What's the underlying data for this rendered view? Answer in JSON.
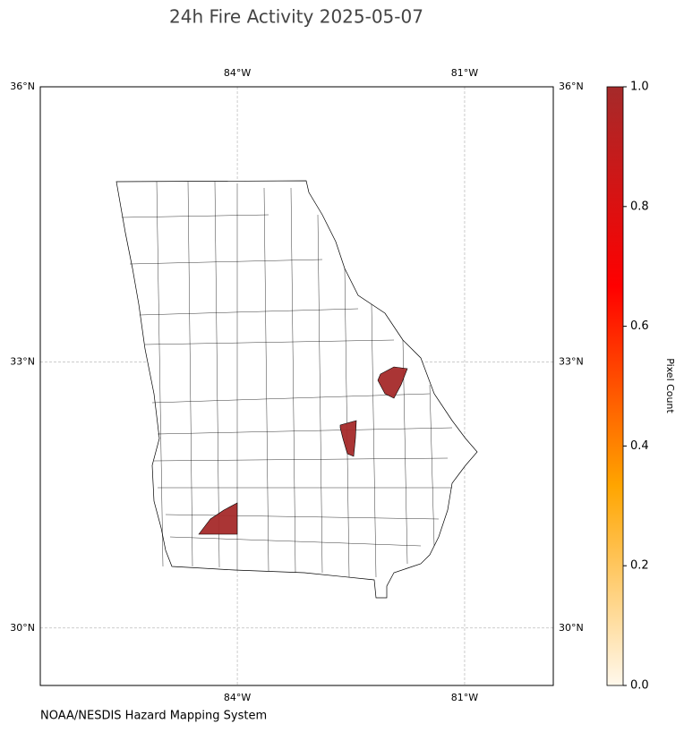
{
  "map": {
    "title": "24h Fire Activity 2025-05-07",
    "xlim": [
      -86.6,
      -79.83
    ],
    "ylim": [
      29.34,
      36
    ],
    "xticks": [
      {
        "value": -84,
        "label": "84°W"
      },
      {
        "value": -81,
        "label": "81°W"
      }
    ],
    "yticks": [
      {
        "value": 36,
        "label": "36°N"
      },
      {
        "value": 33,
        "label": "33°N"
      },
      {
        "value": 30,
        "label": "30°N"
      }
    ],
    "grid": true,
    "fire_pixel_counts": [
      1,
      1,
      1
    ],
    "colorbar": {
      "label": "Pixel Count",
      "lim": [
        0,
        1
      ],
      "ticks": [
        {
          "value": 0,
          "label": "0.0"
        },
        0.2,
        0.4,
        0.6,
        0.8,
        {
          "value": 1,
          "label": "1.0"
        }
      ],
      "colormap": [
        "#fff8ec",
        "#ffa500",
        "#ff0000",
        "#a52a2a"
      ]
    },
    "source": "NOAA/NESDIS Hazard Mapping System"
  }
}
